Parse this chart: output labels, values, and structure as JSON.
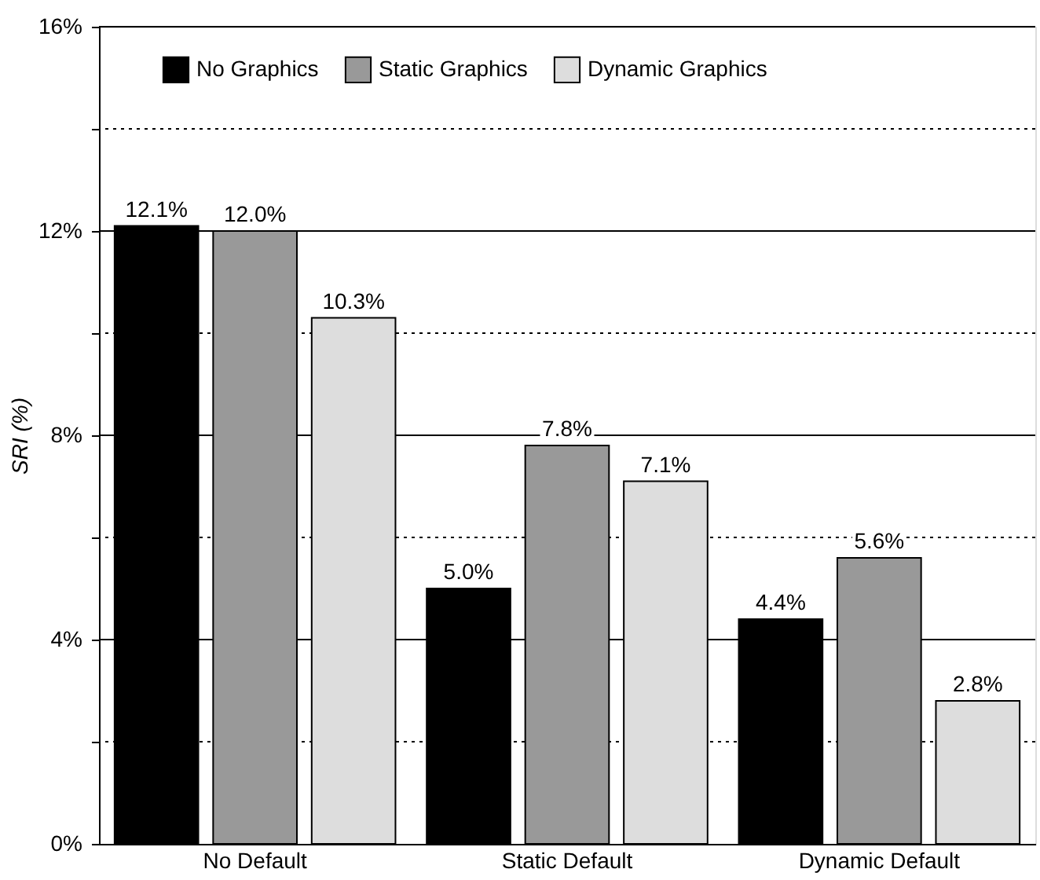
{
  "chart_data": {
    "type": "bar",
    "ylabel": "SRI (%)",
    "categories": [
      "No Default",
      "Static Default",
      "Dynamic Default"
    ],
    "series": [
      {
        "name": "No Graphics",
        "color": "#000000",
        "values": [
          12.1,
          5.0,
          4.4
        ],
        "value_labels": [
          "12.1%",
          "5.0%",
          "4.4%"
        ]
      },
      {
        "name": "Static Graphics",
        "color": "#999999",
        "values": [
          12.0,
          7.8,
          5.6
        ],
        "value_labels": [
          "12.0%",
          "7.8%",
          "5.6%"
        ]
      },
      {
        "name": "Dynamic Graphics",
        "color": "#dddddd",
        "values": [
          10.3,
          7.1,
          2.8
        ],
        "value_labels": [
          "10.3%",
          "7.1%",
          "2.8%"
        ]
      }
    ],
    "ylim": [
      0,
      16
    ],
    "yticks": [
      {
        "value": 0,
        "label": "0%"
      },
      {
        "value": 2,
        "label": null
      },
      {
        "value": 4,
        "label": "4%"
      },
      {
        "value": 6,
        "label": null
      },
      {
        "value": 8,
        "label": "8%"
      },
      {
        "value": 10,
        "label": null
      },
      {
        "value": 12,
        "label": "12%"
      },
      {
        "value": 14,
        "label": null
      },
      {
        "value": 16,
        "label": "16%"
      }
    ],
    "grid": "y",
    "legend": "top"
  }
}
